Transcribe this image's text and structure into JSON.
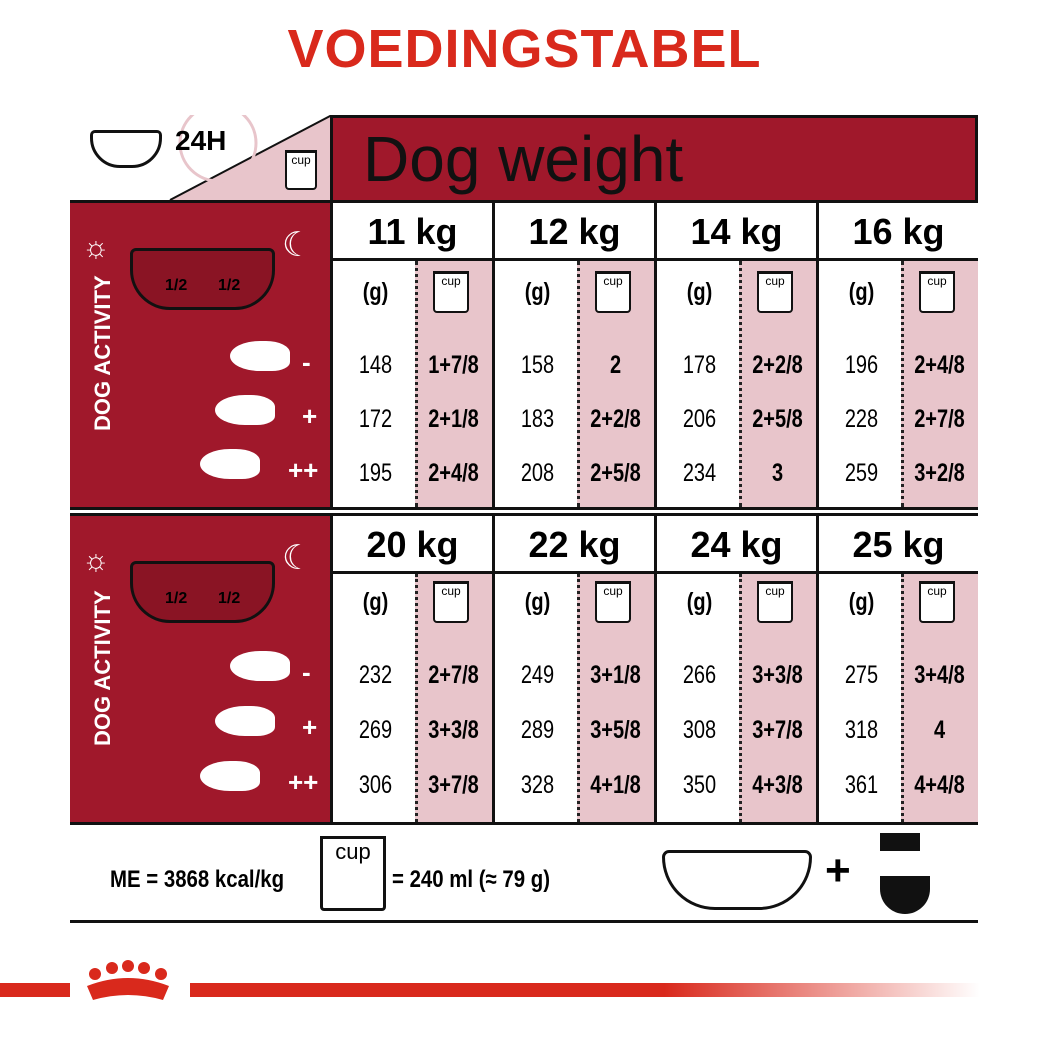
{
  "title": "VOEDINGSTABEL",
  "header": {
    "hours": "24H",
    "cup_label": "cup",
    "dog_weight": "Dog weight"
  },
  "colors": {
    "red": "#a0182b",
    "pink": "#e8c5cb",
    "title_red": "#d9291c"
  },
  "bowl": {
    "half_left": "1/2",
    "half_right": "1/2",
    "sun_icon": "sun-icon",
    "moon_icon": "moon-icon"
  },
  "activity_label": "DOG ACTIVITY",
  "activity_levels": [
    "-",
    "+",
    "++"
  ],
  "unit_grams": "(g)",
  "blocks": [
    {
      "weights": [
        {
          "label": "11 kg",
          "grams": [
            "148",
            "172",
            "195"
          ],
          "cups": [
            "1+7/8",
            "2+1/8",
            "2+4/8"
          ]
        },
        {
          "label": "12 kg",
          "grams": [
            "158",
            "183",
            "208"
          ],
          "cups": [
            "2",
            "2+2/8",
            "2+5/8"
          ]
        },
        {
          "label": "14 kg",
          "grams": [
            "178",
            "206",
            "234"
          ],
          "cups": [
            "2+2/8",
            "2+5/8",
            "3"
          ]
        },
        {
          "label": "16 kg",
          "grams": [
            "196",
            "228",
            "259"
          ],
          "cups": [
            "2+4/8",
            "2+7/8",
            "3+2/8"
          ]
        }
      ]
    },
    {
      "weights": [
        {
          "label": "20 kg",
          "grams": [
            "232",
            "269",
            "306"
          ],
          "cups": [
            "2+7/8",
            "3+3/8",
            "3+7/8"
          ]
        },
        {
          "label": "22 kg",
          "grams": [
            "249",
            "289",
            "328"
          ],
          "cups": [
            "3+1/8",
            "3+5/8",
            "4+1/8"
          ]
        },
        {
          "label": "24 kg",
          "grams": [
            "266",
            "308",
            "350"
          ],
          "cups": [
            "3+3/8",
            "3+7/8",
            "4+3/8"
          ]
        },
        {
          "label": "25 kg",
          "grams": [
            "275",
            "318",
            "361"
          ],
          "cups": [
            "3+4/8",
            "4",
            "4+4/8"
          ]
        }
      ]
    }
  ],
  "footer": {
    "me": "ME = 3868 kcal/kg",
    "cup_label": "cup",
    "cup_equiv": "= 240 ml (≈ 79 g)",
    "plus": "+"
  }
}
